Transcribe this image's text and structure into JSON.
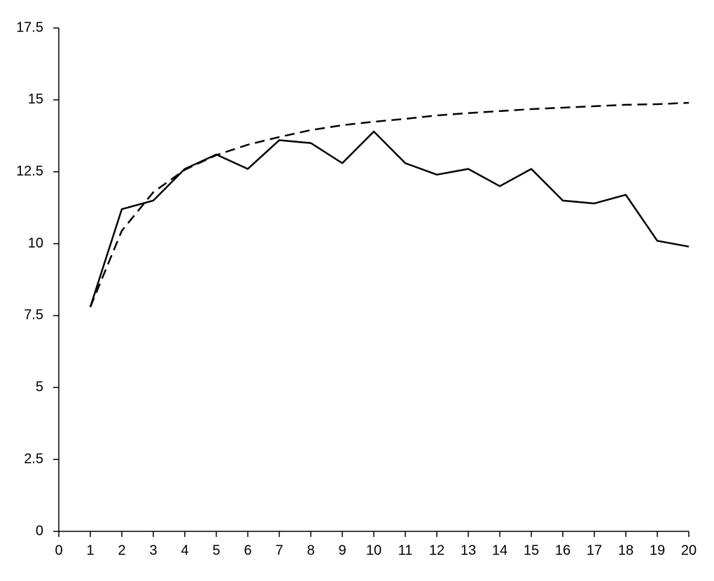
{
  "chart_data": {
    "type": "line",
    "x": [
      1,
      2,
      3,
      4,
      5,
      6,
      7,
      8,
      9,
      10,
      11,
      12,
      13,
      14,
      15,
      16,
      17,
      18,
      19,
      20
    ],
    "series": [
      {
        "color": "#000000",
        "linestyle": "solid",
        "values": [
          7.8,
          11.2,
          11.5,
          12.6,
          13.1,
          12.6,
          13.6,
          13.5,
          12.8,
          13.9,
          12.8,
          12.4,
          12.6,
          12.0,
          12.6,
          11.5,
          11.4,
          11.7,
          10.1,
          9.9
        ]
      },
      {
        "color": "#000000",
        "linestyle": "dashed",
        "values": [
          7.8,
          10.45,
          11.79,
          12.57,
          13.08,
          13.44,
          13.71,
          13.95,
          14.12,
          14.24,
          14.34,
          14.46,
          14.54,
          14.61,
          14.68,
          14.73,
          14.78,
          14.83,
          14.85,
          14.9
        ]
      }
    ],
    "xlim": [
      0,
      20
    ],
    "xticks": [
      0,
      1,
      2,
      3,
      4,
      5,
      6,
      7,
      8,
      9,
      10,
      11,
      12,
      13,
      14,
      15,
      16,
      17,
      18,
      19,
      20
    ],
    "ylim": [
      0,
      17.5
    ],
    "yticks": [
      0,
      2.5,
      5,
      7.5,
      10,
      12.5,
      15,
      17.5
    ],
    "grid": false
  }
}
